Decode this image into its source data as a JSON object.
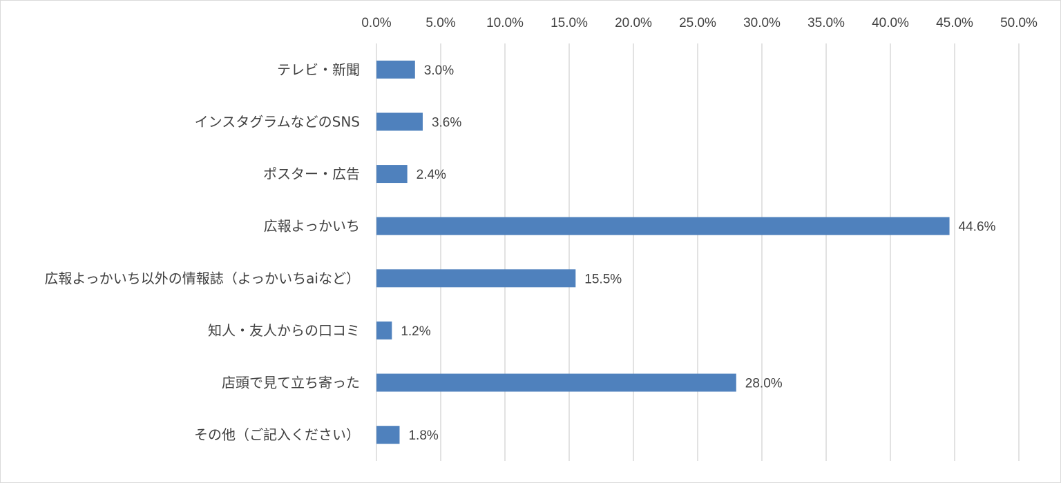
{
  "chart_data": {
    "type": "bar",
    "orientation": "horizontal",
    "categories": [
      "テレビ・新聞",
      "インスタグラムなどのSNS",
      "ポスター・広告",
      "広報よっかいち",
      "広報よっかいち以外の情報誌（よっかいちaiなど）",
      "知人・友人からの口コミ",
      "店頭で見て立ち寄った",
      "その他（ご記入ください）"
    ],
    "values": [
      3.0,
      3.6,
      2.4,
      44.6,
      15.5,
      1.2,
      28.0,
      1.8
    ],
    "value_labels": [
      "3.0%",
      "3.6%",
      "2.4%",
      "44.6%",
      "15.5%",
      "1.2%",
      "28.0%",
      "1.8%"
    ],
    "xlim": [
      0,
      50
    ],
    "x_ticks": [
      0,
      5,
      10,
      15,
      20,
      25,
      30,
      35,
      40,
      45,
      50
    ],
    "x_tick_labels": [
      "0.0%",
      "5.0%",
      "10.0%",
      "15.0%",
      "20.0%",
      "25.0%",
      "30.0%",
      "35.0%",
      "40.0%",
      "45.0%",
      "50.0%"
    ],
    "x_axis_position": "top",
    "grid": true,
    "bar_color": "#4f81bd",
    "grid_color": "#d9d9d9",
    "title": "",
    "xlabel": "",
    "ylabel": ""
  }
}
